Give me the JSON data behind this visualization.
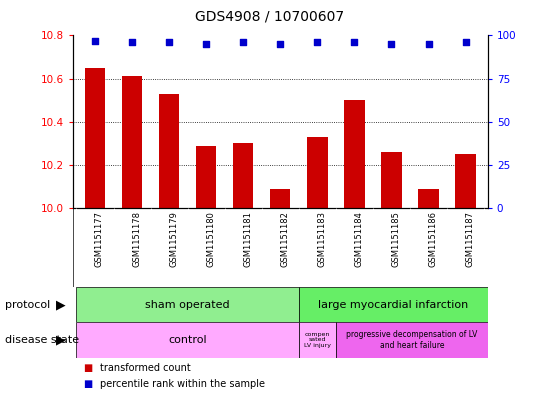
{
  "title": "GDS4908 / 10700607",
  "samples": [
    "GSM1151177",
    "GSM1151178",
    "GSM1151179",
    "GSM1151180",
    "GSM1151181",
    "GSM1151182",
    "GSM1151183",
    "GSM1151184",
    "GSM1151185",
    "GSM1151186",
    "GSM1151187"
  ],
  "red_values": [
    10.65,
    10.61,
    10.53,
    10.29,
    10.3,
    10.09,
    10.33,
    10.5,
    10.26,
    10.09,
    10.25
  ],
  "blue_values": [
    97,
    96,
    96,
    95,
    96,
    95,
    96,
    96,
    95,
    95,
    96
  ],
  "ylim_left": [
    10,
    10.8
  ],
  "ylim_right": [
    0,
    100
  ],
  "yticks_left": [
    10,
    10.2,
    10.4,
    10.6,
    10.8
  ],
  "yticks_right": [
    0,
    25,
    50,
    75,
    100
  ],
  "bar_color": "#cc0000",
  "dot_color": "#0000cc",
  "gray_bg": "#d0d0d0",
  "sham_color": "#90ee90",
  "lmi_color": "#66ee66",
  "ctrl_color": "#ffaaff",
  "prog_color": "#ee66ee",
  "legend_items": [
    {
      "label": "transformed count",
      "color": "#cc0000"
    },
    {
      "label": "percentile rank within the sample",
      "color": "#0000cc"
    }
  ],
  "fig_width": 5.39,
  "fig_height": 3.93,
  "dpi": 100
}
